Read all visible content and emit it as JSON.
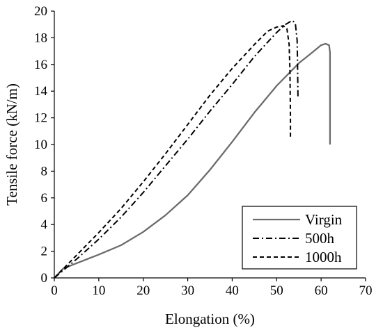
{
  "chart_data": {
    "type": "line",
    "title": "",
    "xlabel": "Elongation (%)",
    "ylabel": "Tensile force (kN/m)",
    "xlim": [
      0,
      70
    ],
    "ylim": [
      0,
      20
    ],
    "xticks": [
      0,
      10,
      20,
      30,
      40,
      50,
      60,
      70
    ],
    "yticks": [
      0,
      2,
      4,
      6,
      8,
      10,
      12,
      14,
      16,
      18,
      20
    ],
    "grid": false,
    "legend_position": "bottom-right",
    "series": [
      {
        "name": "Virgin",
        "color": "#6b6b6b",
        "dash": "solid",
        "points": [
          [
            0,
            0
          ],
          [
            2,
            0.7
          ],
          [
            5,
            1.1
          ],
          [
            10,
            1.75
          ],
          [
            15,
            2.45
          ],
          [
            20,
            3.45
          ],
          [
            25,
            4.7
          ],
          [
            30,
            6.2
          ],
          [
            35,
            8.1
          ],
          [
            40,
            10.2
          ],
          [
            45,
            12.4
          ],
          [
            50,
            14.4
          ],
          [
            55,
            16.1
          ],
          [
            58,
            16.9
          ],
          [
            60,
            17.45
          ],
          [
            61,
            17.55
          ],
          [
            61.8,
            17.45
          ],
          [
            62,
            16.9
          ],
          [
            62,
            10
          ]
        ]
      },
      {
        "name": "500h",
        "color": "#000000",
        "dash": "dashdot",
        "points": [
          [
            0,
            0
          ],
          [
            5,
            1.4
          ],
          [
            10,
            2.9
          ],
          [
            15,
            4.55
          ],
          [
            20,
            6.4
          ],
          [
            25,
            8.4
          ],
          [
            30,
            10.4
          ],
          [
            35,
            12.5
          ],
          [
            40,
            14.5
          ],
          [
            45,
            16.6
          ],
          [
            50,
            18.4
          ],
          [
            52,
            19
          ],
          [
            53.5,
            19.3
          ],
          [
            54.2,
            19.1
          ],
          [
            54.6,
            17.8
          ],
          [
            54.7,
            16
          ],
          [
            54.8,
            13.5
          ]
        ]
      },
      {
        "name": "1000h",
        "color": "#000000",
        "dash": "dashed",
        "points": [
          [
            0,
            0
          ],
          [
            5,
            1.7
          ],
          [
            10,
            3.4
          ],
          [
            15,
            5.2
          ],
          [
            20,
            7.2
          ],
          [
            25,
            9.3
          ],
          [
            30,
            11.5
          ],
          [
            35,
            13.7
          ],
          [
            40,
            15.7
          ],
          [
            45,
            17.5
          ],
          [
            48,
            18.5
          ],
          [
            50,
            18.8
          ],
          [
            51.5,
            18.9
          ],
          [
            52.3,
            18.7
          ],
          [
            52.8,
            17.5
          ],
          [
            53,
            15.5
          ],
          [
            53.1,
            12
          ],
          [
            53.1,
            10.4
          ]
        ]
      }
    ]
  }
}
